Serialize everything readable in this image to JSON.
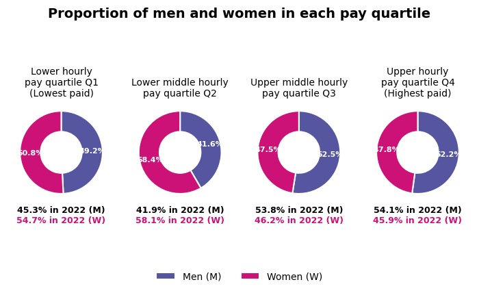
{
  "title": "Proportion of men and women in each pay quartile",
  "legend": "lower center",
  "chart_data": [
    {
      "type": "donut",
      "title": "Lower hourly\npay quartile Q1\n(Lowest paid)",
      "categories": [
        "Men (M)",
        "Women (W)"
      ],
      "values": [
        49.2,
        50.8
      ],
      "value_labels": [
        "49.2%",
        "50.8%"
      ],
      "colors": [
        "#5555a0",
        "#cc1177"
      ],
      "data_labels": true,
      "annotations": [
        "45.3% in 2022 (M)",
        "54.7% in 2022 (W)"
      ]
    },
    {
      "type": "donut",
      "title": "Lower middle hourly\npay quartile Q2",
      "categories": [
        "Men (M)",
        "Women (W)"
      ],
      "values": [
        41.6,
        58.4
      ],
      "value_labels": [
        "41.6%",
        "58.4%"
      ],
      "colors": [
        "#5555a0",
        "#cc1177"
      ],
      "data_labels": true,
      "annotations": [
        "41.9% in 2022 (M)",
        "58.1% in 2022 (W)"
      ]
    },
    {
      "type": "donut",
      "title": "Upper middle hourly\npay quartile Q3",
      "categories": [
        "Men (M)",
        "Women (W)"
      ],
      "values": [
        52.5,
        47.5
      ],
      "value_labels": [
        "52.5%",
        "47.5%"
      ],
      "colors": [
        "#5555a0",
        "#cc1177"
      ],
      "data_labels": true,
      "annotations": [
        "53.8% in 2022 (M)",
        "46.2% in 2022 (W)"
      ]
    },
    {
      "type": "donut",
      "title": "Upper hourly\npay quartile Q4\n(Highest paid)",
      "categories": [
        "Men (M)",
        "Women (W)"
      ],
      "values": [
        52.2,
        47.8
      ],
      "value_labels": [
        "52.2%",
        "47.8%"
      ],
      "colors": [
        "#5555a0",
        "#cc1177"
      ],
      "data_labels": true,
      "annotations": [
        "54.1% in 2022 (M)",
        "45.9% in 2022 (W)"
      ]
    }
  ]
}
